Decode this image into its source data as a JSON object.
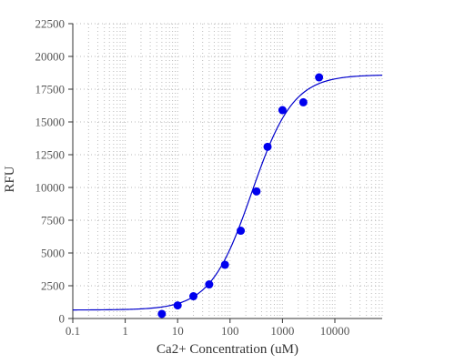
{
  "chart_data": {
    "type": "scatter",
    "title": "",
    "xlabel": "Ca2+ Concentration (uM)",
    "ylabel": "RFU",
    "x_scale": "log",
    "xlim": [
      0.1,
      80000
    ],
    "ylim": [
      0,
      22500
    ],
    "x_ticks": [
      0.1,
      1,
      10,
      100,
      1000,
      10000
    ],
    "x_tick_labels": [
      "0.1",
      "1",
      "10",
      "100",
      "1000",
      "10000"
    ],
    "y_ticks": [
      0,
      2500,
      5000,
      7500,
      10000,
      12500,
      15000,
      17500,
      20000,
      22500
    ],
    "y_tick_labels": [
      "0",
      "2500",
      "5000",
      "7500",
      "10000",
      "12500",
      "15000",
      "17500",
      "20000",
      "22500"
    ],
    "grid": true,
    "legend": "none",
    "points_color": "#0000ee",
    "fit_color": "#0000cc",
    "series": [
      {
        "type": "scatter",
        "x": [
          5,
          10,
          20,
          40,
          80,
          160,
          320,
          520,
          1000,
          2500,
          5000
        ],
        "y": [
          350,
          1000,
          1700,
          2600,
          4100,
          6700,
          9700,
          13100,
          15900,
          16500,
          18400
        ]
      }
    ],
    "fit": {
      "model": "4PL",
      "bottom": 650,
      "top": 18600,
      "ec50": 260,
      "hill": 1.1
    }
  }
}
